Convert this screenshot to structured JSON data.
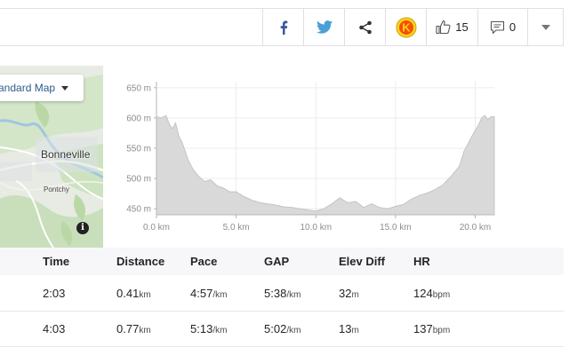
{
  "actions": {
    "facebook_icon": "facebook-icon",
    "twitter_icon": "twitter-icon",
    "share_icon": "share-icon",
    "kudos_badge_letter": "K",
    "kudos_count": "15",
    "comment_count": "0"
  },
  "map": {
    "style_button": "andard Map",
    "town": "Bonneville",
    "village": "Pontchy",
    "info": "i"
  },
  "chart_data": {
    "type": "area",
    "title": "",
    "xlabel": "",
    "ylabel": "",
    "x_unit": "km",
    "y_unit": "m",
    "xlim": [
      0,
      21.2
    ],
    "ylim": [
      440,
      660
    ],
    "x_ticks": [
      "0.0 km",
      "5.0 km",
      "10.0 km",
      "15.0 km",
      "20.0 km"
    ],
    "y_ticks": [
      "650 m",
      "600 m",
      "550 m",
      "500 m",
      "450 m"
    ],
    "grid": true,
    "x": [
      0,
      0.3,
      0.6,
      0.8,
      1.0,
      1.2,
      1.4,
      1.6,
      1.8,
      2.0,
      2.3,
      2.6,
      3.0,
      3.4,
      3.8,
      4.2,
      4.6,
      5.0,
      5.5,
      6.0,
      6.5,
      7.0,
      7.5,
      8.0,
      8.5,
      9.0,
      9.5,
      10.0,
      10.5,
      11.0,
      11.5,
      12.0,
      12.5,
      13.0,
      13.5,
      14.0,
      14.5,
      15.0,
      15.5,
      16.0,
      16.5,
      17.0,
      17.5,
      18.0,
      18.5,
      19.0,
      19.3,
      19.6,
      19.9,
      20.2,
      20.4,
      20.6,
      20.8,
      21.0,
      21.2
    ],
    "values": [
      602,
      600,
      604,
      590,
      582,
      592,
      570,
      560,
      545,
      530,
      515,
      505,
      495,
      498,
      488,
      484,
      478,
      478,
      470,
      464,
      460,
      458,
      456,
      453,
      452,
      450,
      448,
      446,
      450,
      458,
      468,
      460,
      462,
      452,
      458,
      452,
      450,
      454,
      457,
      466,
      472,
      476,
      482,
      490,
      504,
      520,
      545,
      560,
      575,
      588,
      600,
      604,
      597,
      602,
      602
    ]
  },
  "splits": {
    "headers": [
      "Time",
      "Distance",
      "Pace",
      "GAP",
      "Elev Diff",
      "HR"
    ],
    "rows": [
      {
        "time": "2:03",
        "dist": "0.41",
        "dist_unit": "km",
        "pace": "4:57",
        "pace_unit": "/km",
        "gap": "5:38",
        "gap_unit": "/km",
        "elev": "32",
        "elev_unit": "m",
        "hr": "124",
        "hr_unit": "bpm"
      },
      {
        "time": "4:03",
        "dist": "0.77",
        "dist_unit": "km",
        "pace": "5:13",
        "pace_unit": "/km",
        "gap": "5:02",
        "gap_unit": "/km",
        "elev": "13",
        "elev_unit": "m",
        "hr": "137",
        "hr_unit": "bpm"
      }
    ]
  }
}
